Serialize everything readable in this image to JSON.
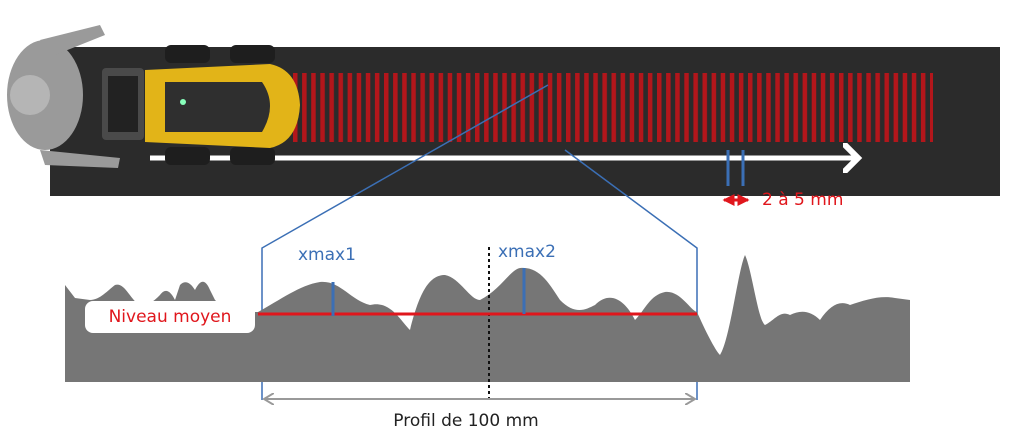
{
  "annotations": {
    "gap": "2 à 5 mm",
    "xmax1": "xmax1",
    "xmax2": "xmax2",
    "mean_level": "Niveau moyen",
    "profile": "Profil de 100 mm"
  }
}
